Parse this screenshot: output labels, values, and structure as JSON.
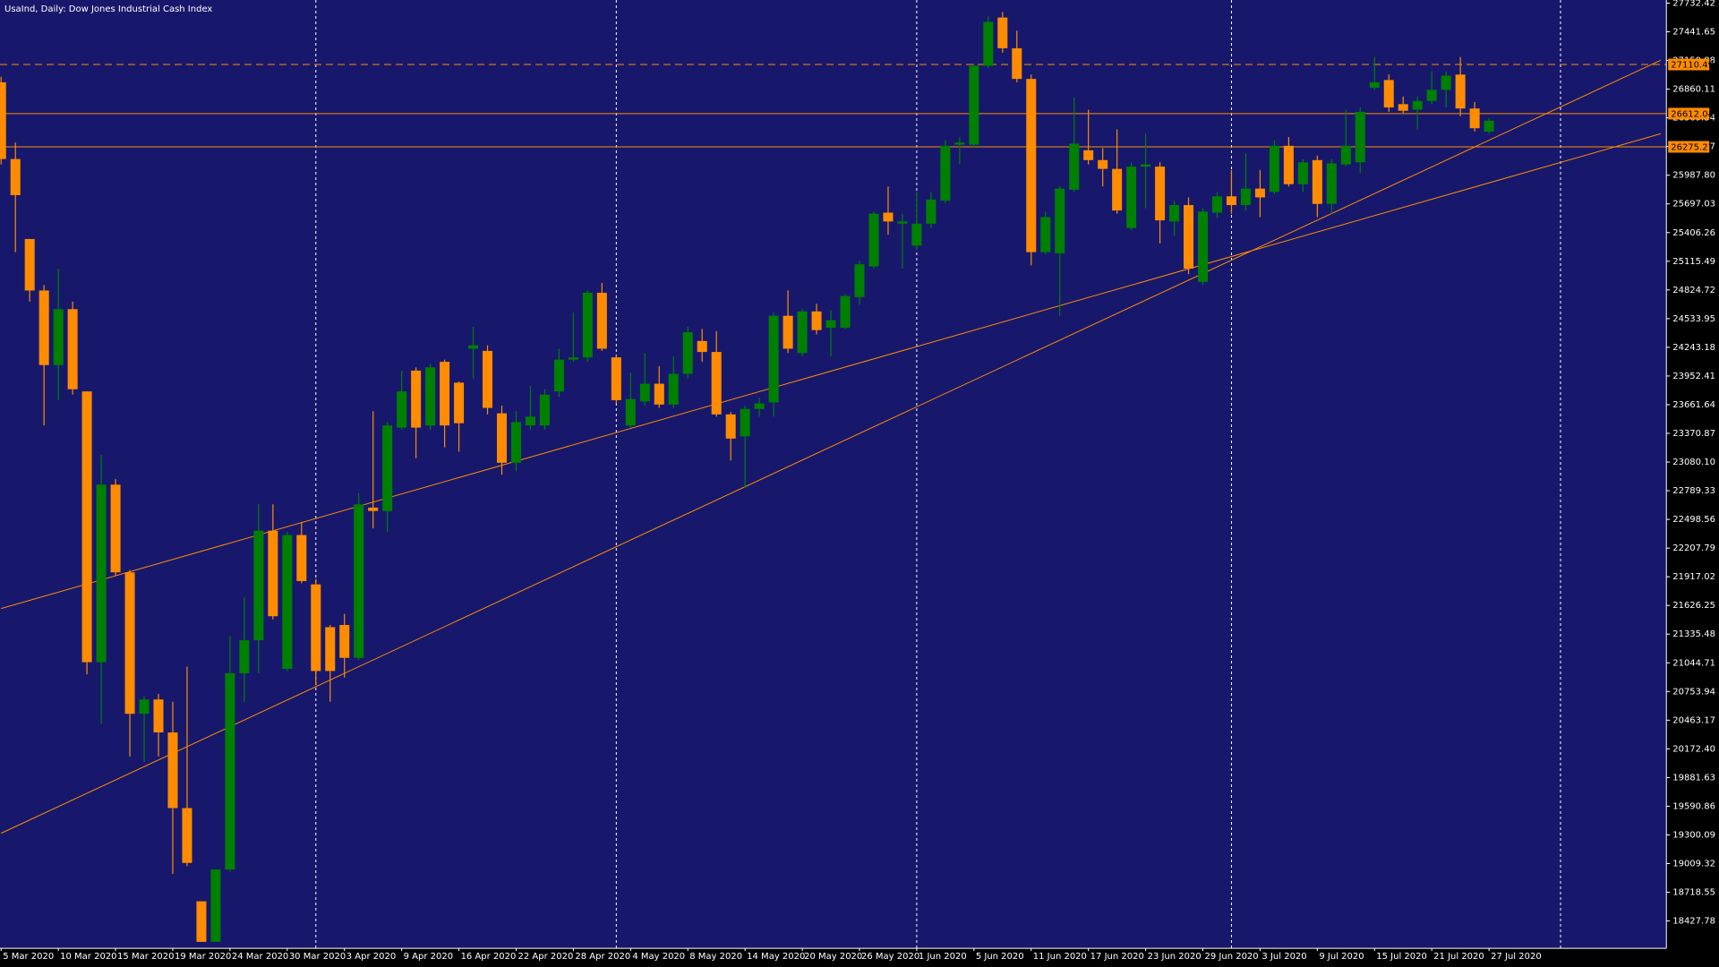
{
  "chart_data": {
    "type": "candlestick",
    "title": "UsaInd, Daily:  Dow Jones Industrial Cash Index",
    "categories": [
      "5 Mar 2020",
      null,
      null,
      null,
      "10 Mar 2020",
      null,
      null,
      null,
      "15 Mar 2020",
      null,
      null,
      null,
      "19 Mar 2020",
      null,
      null,
      null,
      "24 Mar 2020",
      null,
      null,
      null,
      "30 Mar 2020",
      null,
      null,
      null,
      "3 Apr 2020",
      null,
      null,
      null,
      "9 Apr 2020",
      null,
      null,
      null,
      "16 Apr 2020",
      null,
      null,
      null,
      "22 Apr 2020",
      null,
      null,
      null,
      "28 Apr 2020",
      null,
      null,
      null,
      "4 May 2020",
      null,
      null,
      null,
      "8 May 2020",
      null,
      null,
      null,
      "14 May 2020",
      null,
      null,
      null,
      "20 May 2020",
      null,
      null,
      null,
      "26 May 2020",
      null,
      null,
      null,
      "1 Jun 2020",
      null,
      null,
      null,
      "5 Jun 2020",
      null,
      null,
      null,
      "11 Jun 2020",
      null,
      null,
      null,
      "17 Jun 2020",
      null,
      null,
      null,
      "23 Jun 2020",
      null,
      null,
      null,
      "29 Jun 2020",
      null,
      null,
      null,
      "3 Jul 2020",
      null,
      null,
      null,
      "9 Jul 2020",
      null,
      null,
      null,
      "15 Jul 2020",
      null,
      null,
      null,
      "21 Jul 2020",
      null,
      null,
      null,
      "27 Jul 2020"
    ],
    "open": [
      26930,
      26152,
      25341,
      24819,
      24063,
      24630,
      23796,
      21051,
      22851,
      21962,
      20528,
      20673,
      20339,
      19572,
      18627,
      18216,
      18950,
      20939,
      21273,
      22384,
      20984,
      22340,
      21840,
      21406,
      21428,
      21095,
      22618,
      22584,
      23429,
      24007,
      23451,
      24096,
      23885,
      24229,
      24207,
      23574,
      23073,
      23451,
      23451,
      23796,
      24118,
      24141,
      24796,
      24141,
      23451,
      23696,
      23874,
      23663,
      23974,
      24307,
      24196,
      23563,
      23340,
      23618,
      23685,
      24563,
      24185,
      24607,
      24441,
      24441,
      24752,
      25063,
      25608,
      25497,
      25274,
      25497,
      25730,
      26297,
      26297,
      27097,
      27586,
      27275,
      26964,
      25208,
      25196,
      25841,
      26241,
      26141,
      26052,
      25452,
      26075,
      26075,
      25519,
      25685,
      24907,
      25608,
      25774,
      25685,
      25852,
      25819,
      26286,
      25897,
      26141,
      25697,
      26097,
      26119,
      26875,
      26953,
      26708,
      26652,
      26741,
      26853,
      27008,
      26664,
      26430
    ],
    "high": [
      26986,
      26319,
      25341,
      24874,
      25041,
      24707,
      23796,
      23151,
      22907,
      21984,
      20706,
      20728,
      20650,
      21006,
      18627,
      18950,
      21317,
      21706,
      22651,
      22651,
      22373,
      22473,
      21895,
      21428,
      21540,
      22762,
      23596,
      23485,
      24007,
      24040,
      24074,
      24118,
      23896,
      24452,
      24263,
      23651,
      23596,
      23852,
      23818,
      24229,
      24596,
      24819,
      24896,
      24163,
      23985,
      24185,
      24052,
      24152,
      24452,
      24429,
      24407,
      23585,
      23651,
      23729,
      24596,
      24819,
      24630,
      24685,
      24618,
      24785,
      25119,
      25619,
      25874,
      25597,
      25819,
      25819,
      26341,
      26375,
      27119,
      27597,
      27642,
      27453,
      27008,
      25619,
      25874,
      26775,
      26652,
      26263,
      26452,
      26119,
      26408,
      26119,
      25730,
      25763,
      25652,
      25819,
      26041,
      26208,
      26041,
      26341,
      26375,
      26152,
      26186,
      26152,
      26652,
      26675,
      27186,
      27008,
      26786,
      26786,
      27042,
      27042,
      27186,
      26730,
      26564
    ],
    "low": [
      26097,
      25208,
      24707,
      23451,
      23707,
      23763,
      20928,
      20428,
      21929,
      20095,
      20039,
      20095,
      18905,
      18983,
      18216,
      18216,
      18928,
      20650,
      20939,
      21484,
      20962,
      21851,
      20817,
      20650,
      20895,
      21073,
      22407,
      22373,
      23407,
      23118,
      23407,
      23229,
      23185,
      23929,
      23563,
      22951,
      22985,
      23407,
      23407,
      23740,
      24096,
      24096,
      24207,
      23674,
      23429,
      23651,
      23629,
      23629,
      23929,
      24096,
      23540,
      23096,
      22818,
      23540,
      23540,
      24185,
      24152,
      24374,
      24152,
      24429,
      24674,
      25041,
      25385,
      25041,
      25230,
      25452,
      25708,
      26097,
      26263,
      27075,
      27230,
      26930,
      25074,
      25185,
      24563,
      25819,
      26097,
      25874,
      25597,
      25430,
      25652,
      25296,
      25374,
      24985,
      24874,
      25552,
      25597,
      25630,
      25563,
      25797,
      25874,
      25819,
      25563,
      25597,
      26075,
      26008,
      26853,
      26630,
      26619,
      26452,
      26708,
      26675,
      26586,
      26430,
      26408
    ],
    "close": [
      26152,
      25786,
      24819,
      24063,
      24630,
      23818,
      21051,
      22851,
      21962,
      20528,
      20673,
      20339,
      19572,
      19016,
      18216,
      18950,
      20939,
      21273,
      22384,
      21517,
      22340,
      21873,
      20962,
      20962,
      21095,
      22651,
      22584,
      23451,
      23796,
      23429,
      24040,
      23451,
      23474,
      24263,
      23629,
      23073,
      23485,
      23540,
      23763,
      24118,
      24141,
      24796,
      24229,
      23707,
      23718,
      23874,
      23663,
      23974,
      24396,
      24196,
      23563,
      23318,
      23618,
      23674,
      24563,
      24229,
      24607,
      24418,
      24518,
      24763,
      25085,
      25597,
      25519,
      25519,
      25497,
      25741,
      26286,
      26319,
      27097,
      27542,
      27275,
      26964,
      25208,
      25563,
      25852,
      26308,
      26141,
      26052,
      25630,
      26075,
      26097,
      25530,
      25685,
      25041,
      25619,
      25774,
      25685,
      25852,
      25763,
      26286,
      25897,
      26119,
      25697,
      26108,
      26286,
      26630,
      26930,
      26675,
      26641,
      26741,
      26853,
      26997,
      26664,
      26464,
      26541
    ],
    "up_color": "#008000",
    "down_color": "#ff8c00",
    "background": "#17186c",
    "ylim": [
      18150,
      27764
    ],
    "yticks": [
      18427.78,
      18718.55,
      19009.32,
      19300.09,
      19590.86,
      19881.63,
      {
        "value": 20172.4,
        "label": "20172.40"
      },
      20463.17,
      20753.94,
      21044.71,
      21335.48,
      21626.25,
      21917.02,
      22207.79,
      22498.56,
      22789.33,
      {
        "value": 23080.1,
        "label": "23080.10"
      },
      23370.87,
      23661.64,
      23952.41,
      24243.18,
      24533.95,
      24824.72,
      25115.49,
      25406.26,
      25697.03,
      {
        "value": 25987.8,
        "label": "25987.80"
      },
      26278.57,
      26569.34,
      26860.11,
      27150.88,
      27441.65,
      27732.42
    ],
    "separators": [
      22,
      43,
      64,
      86,
      109
    ],
    "price_lines": [
      {
        "value": 27110.49,
        "style": "dashed"
      },
      {
        "value": 26612.04,
        "style": "solid"
      },
      {
        "value": 26275.27,
        "style": "solid"
      }
    ],
    "trendlines": [
      {
        "x": [
          0,
          116
        ],
        "values": [
          21595,
          26408
        ]
      },
      {
        "x": [
          0,
          116
        ],
        "values": [
          19317,
          27153
        ]
      }
    ]
  }
}
